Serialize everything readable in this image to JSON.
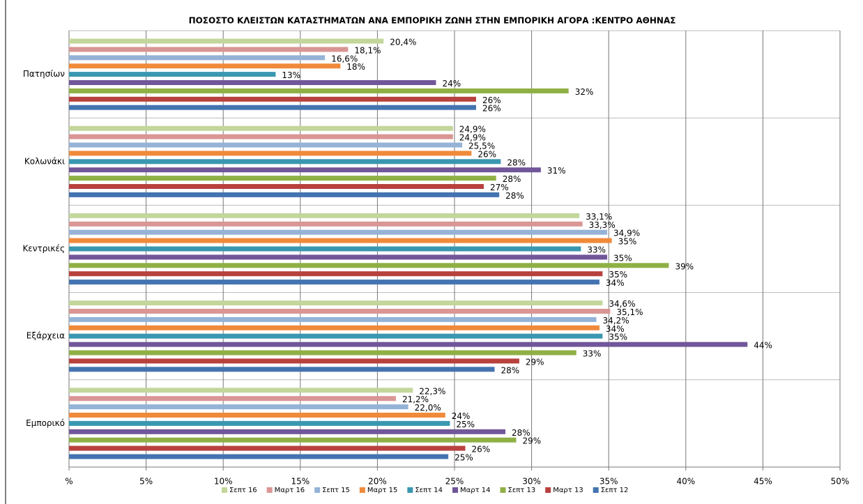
{
  "chart_data": {
    "type": "hbar",
    "title": "ΠΟΣΟΣΤΟ ΚΛΕΙΣΤΩΝ  ΚΑΤΑΣΤΗΜΑΤΩΝ ΑΝΑ ΕΜΠΟΡΙΚΗ ΖΩΝΗ ΣΤΗΝ ΕΜΠΟΡΙΚΗ ΑΓΟΡΑ :ΚΕΝΤΡΟ  ΑΘΗΝΑΣ",
    "categories": [
      "Πατησίων",
      "Κολωνάκι",
      "Κεντρικές",
      "Εξάρχεια",
      "Εμπορικό"
    ],
    "series": [
      {
        "name": "Σεπτ 16",
        "color": "#c3d69b",
        "values": [
          20.4,
          24.9,
          33.1,
          34.6,
          22.3
        ],
        "value_labels": [
          "20,4%",
          "24,9%",
          "33,1%",
          "34,6%",
          "22,3%"
        ]
      },
      {
        "name": "Μαρτ 16",
        "color": "#d99694",
        "values": [
          18.1,
          24.9,
          33.3,
          35.1,
          21.2
        ],
        "value_labels": [
          "18,1%",
          "24,9%",
          "33,3%",
          "35,1%",
          "21,2%"
        ]
      },
      {
        "name": "Σεπτ 15",
        "color": "#95b3d7",
        "values": [
          16.6,
          25.5,
          34.9,
          34.2,
          22.0
        ],
        "value_labels": [
          "16,6%",
          "25,5%",
          "34,9%",
          "34,2%",
          "22,0%"
        ]
      },
      {
        "name": "Μαρτ 15",
        "color": "#f08a3a",
        "values": [
          17.6,
          26.1,
          35.2,
          34.4,
          24.4
        ],
        "value_labels": [
          "18%",
          "26%",
          "35%",
          "34%",
          "24%"
        ]
      },
      {
        "name": "Σεπτ 14",
        "color": "#3a97b0",
        "values": [
          13.4,
          28.0,
          33.2,
          34.6,
          24.7
        ],
        "value_labels": [
          "13%",
          "28%",
          "33%",
          "35%",
          "25%"
        ]
      },
      {
        "name": "Μαρτ 14",
        "color": "#71569a",
        "values": [
          23.8,
          30.6,
          34.9,
          44.0,
          28.3
        ],
        "value_labels": [
          "24%",
          "31%",
          "35%",
          "44%",
          "28%"
        ]
      },
      {
        "name": "Σεπτ 13",
        "color": "#8fb045",
        "values": [
          32.4,
          27.7,
          38.9,
          32.9,
          29.0
        ],
        "value_labels": [
          "32%",
          "28%",
          "39%",
          "33%",
          "29%"
        ]
      },
      {
        "name": "Μαρτ 13",
        "color": "#b8413e",
        "values": [
          26.4,
          26.9,
          34.6,
          29.2,
          25.7
        ],
        "value_labels": [
          "26%",
          "27%",
          "35%",
          "29%",
          "26%"
        ]
      },
      {
        "name": "Σεπτ 12",
        "color": "#4473b0",
        "values": [
          26.4,
          27.9,
          34.4,
          27.6,
          24.6
        ],
        "value_labels": [
          "26%",
          "28%",
          "34%",
          "28%",
          "25%"
        ]
      }
    ],
    "xlim": [
      0,
      50
    ],
    "xticks": [
      {
        "value": 0,
        "label": "%"
      },
      {
        "value": 5,
        "label": "5%"
      },
      {
        "value": 10,
        "label": "10%"
      },
      {
        "value": 15,
        "label": "15%"
      },
      {
        "value": 20,
        "label": "20%"
      },
      {
        "value": 25,
        "label": "25%"
      },
      {
        "value": 30,
        "label": "30%"
      },
      {
        "value": 35,
        "label": "35%"
      },
      {
        "value": 40,
        "label": "40%"
      },
      {
        "value": 45,
        "label": "45%"
      },
      {
        "value": 50,
        "label": "50%"
      }
    ],
    "grid": true,
    "legend": "bottom"
  }
}
